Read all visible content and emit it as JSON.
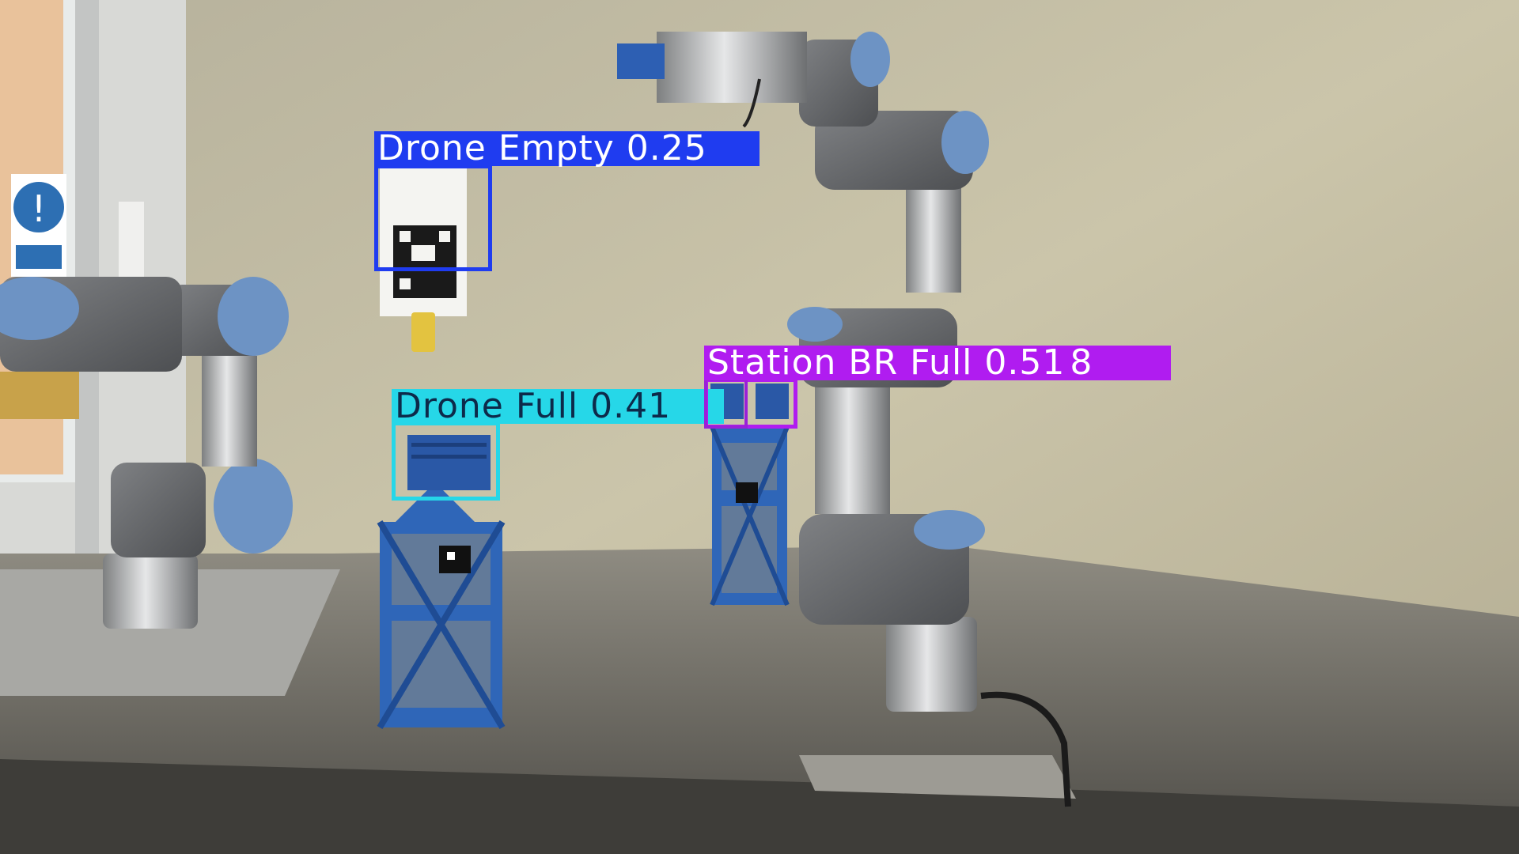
{
  "colors": {
    "drone_empty": "#1f3cf0",
    "drone_full": "#26d7e8",
    "station_br_full": "#b01cf0",
    "station_br_full_inner": "#9a20d8"
  },
  "detections": [
    {
      "id": "drone-empty",
      "label": "Drone Empty 0.25"
    },
    {
      "id": "drone-full",
      "label": "Drone Full 0.41"
    },
    {
      "id": "station-br-full",
      "label": "Station BR Full 0.51",
      "suffix": "8"
    }
  ]
}
